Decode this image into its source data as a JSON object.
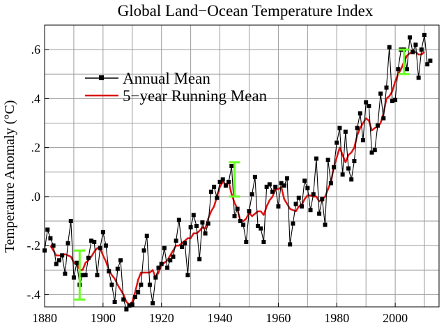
{
  "chart_data": {
    "type": "line",
    "title": "Global Land−Ocean Temperature Index",
    "xlabel": "",
    "ylabel": "Temperature Anomaly (°C)",
    "xlim": [
      1880,
      2015
    ],
    "ylim": [
      -0.45,
      0.7
    ],
    "x_ticks": [
      1880,
      1900,
      1920,
      1940,
      1960,
      1980,
      2000
    ],
    "x_tick_labels": [
      "1880",
      "1900",
      "1920",
      "1940",
      "1960",
      "1980",
      "2000"
    ],
    "y_ticks": [
      -0.4,
      -0.2,
      0.0,
      0.2,
      0.4,
      0.6
    ],
    "y_tick_labels": [
      "-.4",
      "-.2",
      ".0",
      ".2",
      ".4",
      ".6"
    ],
    "grid": true,
    "legend_placement": "top-left",
    "colors": {
      "annual": "#000000",
      "running": "#dd1111",
      "uncertainty": "#66ff22"
    },
    "x": [
      1880,
      1881,
      1882,
      1883,
      1884,
      1885,
      1886,
      1887,
      1888,
      1889,
      1890,
      1891,
      1892,
      1893,
      1894,
      1895,
      1896,
      1897,
      1898,
      1899,
      1900,
      1901,
      1902,
      1903,
      1904,
      1905,
      1906,
      1907,
      1908,
      1909,
      1910,
      1911,
      1912,
      1913,
      1914,
      1915,
      1916,
      1917,
      1918,
      1919,
      1920,
      1921,
      1922,
      1923,
      1924,
      1925,
      1926,
      1927,
      1928,
      1929,
      1930,
      1931,
      1932,
      1933,
      1934,
      1935,
      1936,
      1937,
      1938,
      1939,
      1940,
      1941,
      1942,
      1943,
      1944,
      1945,
      1946,
      1947,
      1948,
      1949,
      1950,
      1951,
      1952,
      1953,
      1954,
      1955,
      1956,
      1957,
      1958,
      1959,
      1960,
      1961,
      1962,
      1963,
      1964,
      1965,
      1966,
      1967,
      1968,
      1969,
      1970,
      1971,
      1972,
      1973,
      1974,
      1975,
      1976,
      1977,
      1978,
      1979,
      1980,
      1981,
      1982,
      1983,
      1984,
      1985,
      1986,
      1987,
      1988,
      1989,
      1990,
      1991,
      1992,
      1993,
      1994,
      1995,
      1996,
      1997,
      1998,
      1999,
      2000,
      2001,
      2002,
      2003,
      2004,
      2005,
      2006,
      2007,
      2008,
      2009,
      2010,
      2011,
      2012
    ],
    "series": [
      {
        "name": "Annual Mean",
        "values": [
          -0.22,
          -0.135,
          -0.17,
          -0.2,
          -0.275,
          -0.26,
          -0.24,
          -0.315,
          -0.19,
          -0.1,
          -0.33,
          -0.27,
          -0.36,
          -0.32,
          -0.32,
          -0.25,
          -0.18,
          -0.185,
          -0.32,
          -0.21,
          -0.145,
          -0.2,
          -0.305,
          -0.36,
          -0.43,
          -0.295,
          -0.26,
          -0.42,
          -0.46,
          -0.445,
          -0.44,
          -0.41,
          -0.39,
          -0.36,
          -0.22,
          -0.16,
          -0.36,
          -0.435,
          -0.33,
          -0.29,
          -0.275,
          -0.21,
          -0.29,
          -0.26,
          -0.245,
          -0.18,
          -0.095,
          -0.205,
          -0.19,
          -0.32,
          -0.125,
          -0.075,
          -0.12,
          -0.255,
          -0.105,
          -0.15,
          -0.11,
          0.02,
          0.04,
          -0.005,
          0.06,
          0.07,
          0.045,
          0.06,
          0.125,
          -0.08,
          -0.05,
          -0.1,
          -0.115,
          -0.185,
          -0.06,
          0.01,
          0.08,
          -0.12,
          -0.13,
          -0.185,
          0.04,
          0.05,
          0.02,
          0.04,
          -0.04,
          0.055,
          0.045,
          0.075,
          -0.195,
          -0.11,
          -0.03,
          -0.005,
          -0.04,
          0.065,
          0.035,
          -0.055,
          0.01,
          0.155,
          -0.07,
          -0.01,
          -0.115,
          0.15,
          0.055,
          0.12,
          0.22,
          0.28,
          0.09,
          0.265,
          0.115,
          0.07,
          0.145,
          0.28,
          0.34,
          0.23,
          0.385,
          0.37,
          0.18,
          0.19,
          0.29,
          0.42,
          0.32,
          0.445,
          0.61,
          0.39,
          0.395,
          0.52,
          0.6,
          0.6,
          0.52,
          0.65,
          0.59,
          0.62,
          0.485,
          0.6,
          0.66,
          0.54,
          0.555
        ]
      },
      {
        "name": "5−year Running Mean",
        "values": [
          null,
          null,
          -0.2,
          -0.22,
          -0.24,
          -0.24,
          -0.24,
          -0.235,
          -0.24,
          -0.245,
          -0.27,
          -0.27,
          -0.3,
          -0.3,
          -0.27,
          -0.26,
          -0.245,
          -0.225,
          -0.21,
          -0.21,
          -0.24,
          -0.265,
          -0.3,
          -0.32,
          -0.335,
          -0.36,
          -0.38,
          -0.4,
          -0.43,
          -0.44,
          -0.43,
          -0.39,
          -0.34,
          -0.31,
          -0.31,
          -0.31,
          -0.31,
          -0.3,
          -0.33,
          -0.31,
          -0.28,
          -0.27,
          -0.26,
          -0.24,
          -0.22,
          -0.2,
          -0.2,
          -0.19,
          -0.18,
          -0.17,
          -0.17,
          -0.15,
          -0.15,
          -0.14,
          -0.125,
          -0.13,
          -0.09,
          -0.06,
          -0.04,
          0.0,
          0.04,
          0.06,
          0.05,
          0.06,
          0.01,
          -0.025,
          -0.05,
          -0.1,
          -0.1,
          -0.09,
          -0.065,
          -0.08,
          -0.07,
          -0.06,
          -0.06,
          -0.075,
          -0.04,
          -0.015,
          0.0,
          0.03,
          0.03,
          0.04,
          -0.01,
          -0.03,
          -0.05,
          -0.055,
          -0.06,
          -0.04,
          -0.035,
          -0.01,
          0.005,
          0.005,
          0.0,
          0.0,
          -0.02,
          -0.01,
          0.0,
          0.03,
          0.06,
          0.12,
          0.16,
          0.2,
          0.17,
          0.14,
          0.17,
          0.18,
          0.2,
          0.25,
          0.28,
          0.3,
          0.32,
          0.31,
          0.27,
          0.28,
          0.285,
          0.3,
          0.34,
          0.4,
          0.41,
          0.43,
          0.47,
          0.5,
          0.52,
          0.55,
          0.575,
          0.585,
          0.59,
          0.59,
          0.58,
          0.58,
          0.59,
          null,
          null
        ]
      }
    ],
    "uncertainty_bars": [
      {
        "x": 1892,
        "low": -0.42,
        "high": -0.22
      },
      {
        "x": 1945,
        "low": 0.0,
        "high": 0.14
      },
      {
        "x": 2003,
        "low": 0.5,
        "high": 0.6
      }
    ],
    "legend": [
      {
        "label": "Annual Mean",
        "style": "line-square"
      },
      {
        "label": "5−year Running Mean",
        "style": "line"
      }
    ]
  }
}
